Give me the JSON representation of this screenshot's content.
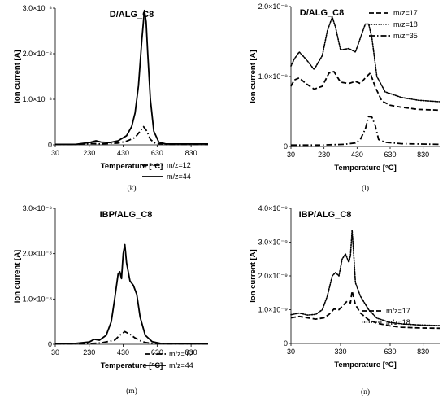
{
  "chart_data": [
    {
      "type": "line",
      "title": "D/ALG_C8",
      "caption": "(k)",
      "xlabel": "Temperature [°C]",
      "ylabel": "Ion current [A]",
      "xlim": [
        30,
        930
      ],
      "ylim": [
        0,
        3e-08
      ],
      "xticks": [
        30,
        230,
        430,
        630,
        830
      ],
      "yticks": [
        0,
        1e-08,
        2e-08,
        3e-08
      ],
      "ytick_labels": [
        "0",
        "1.0×10⁻⁸",
        "2.0×10⁻⁸",
        "3.0×10⁻⁸"
      ],
      "legend_position": "right",
      "series": [
        {
          "name": "m/z=12",
          "style": "dashdot",
          "x": [
            30,
            150,
            250,
            300,
            400,
            450,
            500,
            530,
            550,
            570,
            590,
            620,
            680,
            930
          ],
          "y": [
            1e-10,
            1e-10,
            3e-10,
            2e-10,
            4e-10,
            8e-10,
            1.6e-09,
            3e-09,
            4e-09,
            3e-09,
            1.2e-09,
            3e-10,
            1e-10,
            1e-10
          ]
        },
        {
          "name": "m/z=44",
          "style": "solid",
          "x": [
            30,
            150,
            230,
            270,
            300,
            350,
            400,
            450,
            480,
            500,
            520,
            540,
            555,
            565,
            575,
            590,
            610,
            640,
            680,
            930
          ],
          "y": [
            1e-10,
            1e-10,
            5e-10,
            9e-10,
            6e-10,
            5e-10,
            9e-10,
            2e-09,
            4e-09,
            7e-09,
            1.3e-08,
            2.3e-08,
            2.95e-08,
            2.7e-08,
            2e-08,
            1e-08,
            3e-09,
            6e-10,
            2e-10,
            2e-10
          ]
        }
      ]
    },
    {
      "type": "line",
      "title": "D/ALG_C8",
      "caption": "(l)",
      "xlabel": "Temperature [°C]",
      "ylabel": "Ion current [A]",
      "xlim": [
        30,
        930
      ],
      "ylim": [
        0,
        2e-09
      ],
      "xticks": [
        30,
        230,
        430,
        630,
        830
      ],
      "yticks": [
        0,
        1e-09,
        2e-09
      ],
      "ytick_labels": [
        "0",
        "1.0×10⁻⁹",
        "2.0×10⁻⁹"
      ],
      "legend_position": "top-right",
      "series": [
        {
          "name": "m/z=17",
          "style": "dashed",
          "x": [
            30,
            50,
            80,
            120,
            170,
            220,
            260,
            290,
            330,
            380,
            420,
            450,
            480,
            510,
            540,
            580,
            630,
            700,
            800,
            930
          ],
          "y": [
            8.6e-10,
            9.5e-10,
            9.8e-10,
            9e-10,
            8.2e-10,
            8.6e-10,
            1.05e-09,
            1.07e-09,
            9.2e-10,
            9e-10,
            9.3e-10,
            9e-10,
            9.8e-10,
            1.05e-09,
            8.5e-10,
            6.5e-10,
            5.9e-10,
            5.6e-10,
            5.3e-10,
            5.2e-10
          ]
        },
        {
          "name": "m/z=18",
          "style": "dotted",
          "x": [
            30,
            50,
            80,
            120,
            170,
            220,
            250,
            280,
            300,
            330,
            380,
            420,
            450,
            480,
            500,
            520,
            550,
            600,
            700,
            800,
            930
          ],
          "y": [
            1.15e-09,
            1.25e-09,
            1.35e-09,
            1.25e-09,
            1.1e-09,
            1.3e-09,
            1.65e-09,
            1.85e-09,
            1.7e-09,
            1.38e-09,
            1.4e-09,
            1.35e-09,
            1.55e-09,
            1.75e-09,
            1.75e-09,
            1.55e-09,
            1e-09,
            7.8e-10,
            7e-10,
            6.6e-10,
            6.4e-10
          ]
        },
        {
          "name": "m/z=35",
          "style": "dashdot",
          "x": [
            30,
            200,
            350,
            420,
            450,
            480,
            500,
            520,
            540,
            560,
            600,
            700,
            930
          ],
          "y": [
            2e-11,
            2e-11,
            3e-11,
            5e-11,
            1e-10,
            2.5e-10,
            4.3e-10,
            4.2e-10,
            3e-10,
            1e-10,
            6e-11,
            4e-11,
            3e-11
          ]
        }
      ]
    },
    {
      "type": "line",
      "title": "IBP/ALG_C8",
      "caption": "(m)",
      "xlabel": "Temperature [°C]",
      "ylabel": "Ion current [A]",
      "xlim": [
        30,
        930
      ],
      "ylim": [
        0,
        3e-08
      ],
      "xticks": [
        30,
        230,
        430,
        630,
        830
      ],
      "yticks": [
        0,
        1e-08,
        2e-08,
        3e-08
      ],
      "ytick_labels": [
        "0",
        "1.0×10⁻⁸",
        "2.0×10⁻⁸",
        "3.0×10⁻⁸"
      ],
      "legend_position": "right",
      "series": [
        {
          "name": "m/z=12",
          "style": "dashdot",
          "x": [
            30,
            200,
            300,
            380,
            410,
            440,
            470,
            500,
            530,
            560,
            600,
            700,
            930
          ],
          "y": [
            1e-10,
            1e-10,
            3e-10,
            9e-10,
            2e-09,
            2.8e-09,
            2.2e-09,
            1.4e-09,
            8e-10,
            4e-10,
            2e-10,
            1e-10,
            1e-10
          ]
        },
        {
          "name": "m/z=44",
          "style": "solid",
          "x": [
            30,
            150,
            230,
            260,
            290,
            330,
            360,
            380,
            400,
            410,
            420,
            430,
            440,
            450,
            470,
            490,
            510,
            530,
            560,
            600,
            650,
            930
          ],
          "y": [
            1e-10,
            2e-10,
            5e-10,
            1.1e-09,
            9e-10,
            2e-09,
            5e-09,
            1e-08,
            1.55e-08,
            1.6e-08,
            1.45e-08,
            2e-08,
            2.2e-08,
            1.8e-08,
            1.4e-08,
            1.3e-08,
            1.1e-08,
            6e-09,
            2e-09,
            6e-10,
            2e-10,
            1e-10
          ]
        }
      ]
    },
    {
      "type": "line",
      "title": "IBP/ALG_C8",
      "caption": "(n)",
      "xlabel": "Temperature [°C]",
      "ylabel": "Ion current [A]",
      "xlim": [
        30,
        930
      ],
      "ylim": [
        0,
        4e-09
      ],
      "xticks": [
        30,
        330,
        630,
        830
      ],
      "yticks": [
        0,
        1e-09,
        2e-09,
        3e-09,
        4e-09
      ],
      "ytick_labels": [
        "0",
        "1.0×10⁻⁹",
        "2.0×10⁻⁹",
        "3.0×10⁻⁹",
        "4.0×10⁻⁹"
      ],
      "legend_position": "right",
      "series": [
        {
          "name": "m/z=17",
          "style": "dashed",
          "x": [
            30,
            80,
            130,
            180,
            230,
            260,
            290,
            320,
            350,
            370,
            390,
            400,
            420,
            450,
            500,
            550,
            630,
            700,
            800,
            930
          ],
          "y": [
            7.6e-10,
            8e-10,
            7.6e-10,
            7.2e-10,
            7.6e-10,
            8.6e-10,
            1.02e-09,
            1e-09,
            1.15e-09,
            1.25e-09,
            1.2e-09,
            1.55e-09,
            1.15e-09,
            9e-10,
            7e-10,
            6e-10,
            5.2e-10,
            4.8e-10,
            4.6e-10,
            4.5e-10
          ]
        },
        {
          "name": "m/z=18",
          "style": "dotted",
          "x": [
            30,
            80,
            130,
            180,
            220,
            250,
            280,
            300,
            320,
            340,
            360,
            380,
            390,
            400,
            410,
            420,
            450,
            500,
            550,
            630,
            700,
            800,
            930
          ],
          "y": [
            8.5e-10,
            9e-10,
            8.4e-10,
            8.6e-10,
            1e-09,
            1.4e-09,
            2e-09,
            2.1e-09,
            2e-09,
            2.5e-09,
            2.65e-09,
            2.4e-09,
            2.6e-09,
            3.35e-09,
            2.6e-09,
            1.8e-09,
            1.4e-09,
            1e-09,
            7.5e-10,
            6.2e-10,
            5.8e-10,
            5.5e-10,
            5.3e-10
          ]
        }
      ]
    }
  ]
}
